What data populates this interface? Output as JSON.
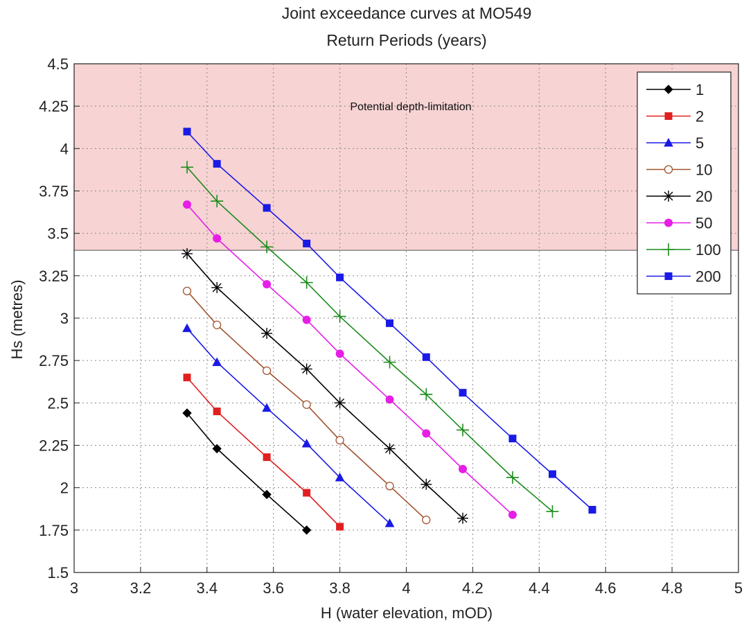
{
  "chart_data": {
    "type": "line",
    "title": "Joint exceedance curves at MO549",
    "subtitle": "Return Periods (years)",
    "xlabel": "H (water elevation, mOD)",
    "ylabel": "Hs (metres)",
    "xlim": [
      3,
      5
    ],
    "ylim": [
      1.5,
      4.5
    ],
    "xticks": [
      "3",
      "3.2",
      "3.4",
      "3.6",
      "3.8",
      "4",
      "4.2",
      "4.4",
      "4.6",
      "4.8",
      "5"
    ],
    "yticks": [
      "1.5",
      "1.75",
      "2",
      "2.25",
      "2.5",
      "2.75",
      "3",
      "3.25",
      "3.5",
      "3.75",
      "4",
      "4.25",
      "4.5"
    ],
    "grid": true,
    "legend_position": "top-right",
    "shaded_region": {
      "ymin": 3.4,
      "ymax": 4.5,
      "color": "#f7d3d3",
      "label": "Potential depth-limitation"
    },
    "series": [
      {
        "name": "1",
        "color": "#000000",
        "marker": "diamond",
        "x": [
          3.34,
          3.43,
          3.58,
          3.7
        ],
        "y": [
          2.44,
          2.23,
          1.96,
          1.75
        ]
      },
      {
        "name": "2",
        "color": "#e02020",
        "marker": "square",
        "x": [
          3.34,
          3.43,
          3.58,
          3.7,
          3.8
        ],
        "y": [
          2.65,
          2.45,
          2.18,
          1.97,
          1.77
        ]
      },
      {
        "name": "5",
        "color": "#1a1ae6",
        "marker": "triangle",
        "x": [
          3.34,
          3.43,
          3.58,
          3.7,
          3.8,
          3.95
        ],
        "y": [
          2.94,
          2.74,
          2.47,
          2.26,
          2.06,
          1.79
        ]
      },
      {
        "name": "10",
        "color": "#a0522d",
        "marker": "circle-open",
        "x": [
          3.34,
          3.43,
          3.58,
          3.7,
          3.8,
          3.95,
          4.06
        ],
        "y": [
          3.16,
          2.96,
          2.69,
          2.49,
          2.28,
          2.01,
          1.81
        ]
      },
      {
        "name": "20",
        "color": "#000000",
        "marker": "star",
        "x": [
          3.34,
          3.43,
          3.58,
          3.7,
          3.8,
          3.95,
          4.06,
          4.17
        ],
        "y": [
          3.38,
          3.18,
          2.91,
          2.7,
          2.5,
          2.23,
          2.02,
          1.82
        ]
      },
      {
        "name": "50",
        "color": "#e61ee6",
        "marker": "circle",
        "x": [
          3.34,
          3.43,
          3.58,
          3.7,
          3.8,
          3.95,
          4.06,
          4.17,
          4.32
        ],
        "y": [
          3.67,
          3.47,
          3.2,
          2.99,
          2.79,
          2.52,
          2.32,
          2.11,
          1.84
        ]
      },
      {
        "name": "100",
        "color": "#1a8c1a",
        "marker": "plus",
        "x": [
          3.34,
          3.43,
          3.58,
          3.7,
          3.8,
          3.95,
          4.06,
          4.17,
          4.32,
          4.44
        ],
        "y": [
          3.89,
          3.69,
          3.42,
          3.21,
          3.01,
          2.74,
          2.55,
          2.34,
          2.06,
          1.86
        ]
      },
      {
        "name": "200",
        "color": "#1a1ae6",
        "marker": "square",
        "x": [
          3.34,
          3.43,
          3.58,
          3.7,
          3.8,
          3.95,
          4.06,
          4.17,
          4.32,
          4.44,
          4.56
        ],
        "y": [
          4.1,
          3.91,
          3.65,
          3.44,
          3.24,
          2.97,
          2.77,
          2.56,
          2.29,
          2.08,
          1.87
        ]
      }
    ]
  }
}
